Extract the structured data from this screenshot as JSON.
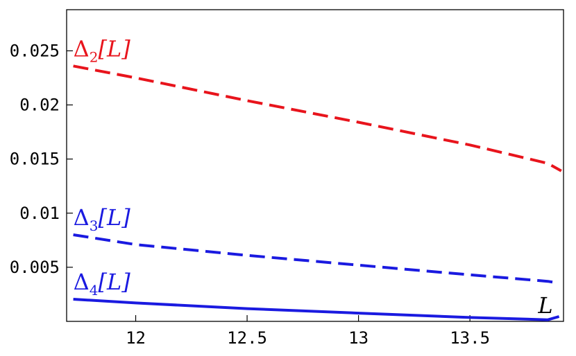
{
  "chart_data": {
    "type": "line",
    "title": "",
    "xlabel": "L",
    "ylabel": "",
    "xlim": [
      11.69,
      13.92
    ],
    "ylim": [
      0,
      0.0288
    ],
    "grid": false,
    "x_ticks": [
      {
        "value": 12,
        "label": "12"
      },
      {
        "value": 12.5,
        "label": "12.5"
      },
      {
        "value": 13,
        "label": "13"
      },
      {
        "value": 13.5,
        "label": "13.5"
      }
    ],
    "y_ticks": [
      {
        "value": 0.005,
        "label": "0.005"
      },
      {
        "value": 0.01,
        "label": "0.01"
      },
      {
        "value": 0.015,
        "label": "0.015"
      },
      {
        "value": 0.02,
        "label": "0.02"
      },
      {
        "value": 0.025,
        "label": "0.025"
      }
    ],
    "series": [
      {
        "name": "Δ2[L]",
        "label_main": "Δ",
        "label_sub": "2",
        "label_rest": "[L]",
        "color": "#e8141c",
        "style": "dashed",
        "x": [
          11.72,
          12.0,
          12.5,
          13.0,
          13.5,
          13.85,
          13.91
        ],
        "y": [
          0.0236,
          0.0225,
          0.0204,
          0.0184,
          0.0163,
          0.0146,
          0.0139
        ]
      },
      {
        "name": "Δ3[L]",
        "label_main": "Δ",
        "label_sub": "3",
        "label_rest": "[L]",
        "color": "#1a1ae0",
        "style": "dashed",
        "x": [
          11.72,
          12.0,
          12.5,
          13.0,
          13.5,
          13.85,
          13.88
        ],
        "y": [
          0.008,
          0.0071,
          0.0061,
          0.0052,
          0.0043,
          0.0037,
          0.0036
        ]
      },
      {
        "name": "Δ4[L]",
        "label_main": "Δ",
        "label_sub": "4",
        "label_rest": "[L]",
        "color": "#1a1ae0",
        "style": "solid",
        "x": [
          11.72,
          12.0,
          12.5,
          13.0,
          13.5,
          13.85,
          13.9
        ],
        "y": [
          0.00205,
          0.0017,
          0.00118,
          0.00076,
          0.00036,
          0.00015,
          0.00045
        ]
      }
    ]
  }
}
